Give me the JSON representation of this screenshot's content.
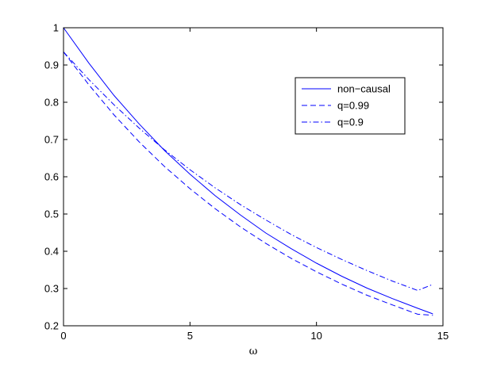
{
  "chart_data": {
    "type": "line",
    "title": "",
    "xlabel": "ω",
    "ylabel": "",
    "xlim": [
      0,
      15
    ],
    "ylim": [
      0.2,
      1
    ],
    "xticks": [
      0,
      5,
      10,
      15
    ],
    "yticks": [
      0.2,
      0.3,
      0.4,
      0.5,
      0.6,
      0.7,
      0.8,
      0.9,
      1
    ],
    "xtick_labels": [
      "0",
      "5",
      "10",
      "15"
    ],
    "ytick_labels": [
      "0.2",
      "0.3",
      "0.4",
      "0.5",
      "0.6",
      "0.7",
      "0.8",
      "0.9",
      "1"
    ],
    "grid": false,
    "legend_position": "top-right",
    "line_color": "#0000ff",
    "x": [
      0,
      1,
      2,
      3,
      4,
      5,
      6,
      7,
      8,
      9,
      10,
      11,
      12,
      13,
      14,
      14.6
    ],
    "series": [
      {
        "name": "non−causal",
        "style": "solid",
        "values": [
          1.0,
          0.905,
          0.818,
          0.741,
          0.67,
          0.607,
          0.549,
          0.497,
          0.449,
          0.407,
          0.368,
          0.333,
          0.301,
          0.273,
          0.247,
          0.232
        ]
      },
      {
        "name": "q=0.99",
        "style": "dashed",
        "values": [
          0.935,
          0.847,
          0.766,
          0.693,
          0.627,
          0.568,
          0.514,
          0.465,
          0.421,
          0.381,
          0.345,
          0.312,
          0.282,
          0.256,
          0.231,
          0.228
        ]
      },
      {
        "name": "q=0.9",
        "style": "dashdot",
        "values": [
          0.935,
          0.861,
          0.793,
          0.73,
          0.672,
          0.619,
          0.57,
          0.525,
          0.484,
          0.445,
          0.41,
          0.378,
          0.348,
          0.32,
          0.295,
          0.311
        ]
      }
    ]
  }
}
